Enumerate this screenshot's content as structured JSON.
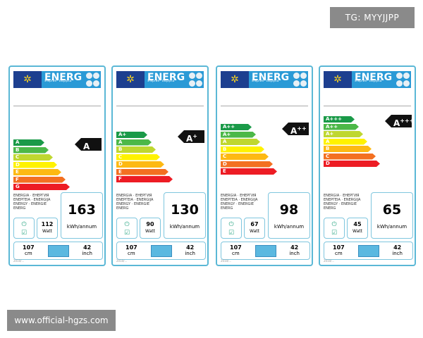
{
  "tag": "TG: MYYJJPP",
  "watermark": "www.official-hgzs.com",
  "header": {
    "energy_word": "ENERG",
    "sub": "энергия · ενεργεια",
    "flag_icon": "eu-flag-icon"
  },
  "multilang_text": "ENERGIA · ЕНЕРГИЯ ENEPΓEIA · ENERGIJA ENERGY · ENERGIE ENERG",
  "units": {
    "kwh": "kWh/annum",
    "watt": "Watt",
    "cm": "cm",
    "inch": "inch"
  },
  "colors": [
    "#1a9a48",
    "#4cb848",
    "#bfd730",
    "#fff200",
    "#fdb913",
    "#f37021",
    "#ed1c24"
  ],
  "labels": [
    {
      "classes": [
        "A",
        "B",
        "C",
        "D",
        "E",
        "F",
        "G"
      ],
      "rating": "A",
      "rating_sup": "",
      "kwh": "163",
      "watt": "112",
      "cm": "107",
      "inch": "42",
      "footer": "2010/..."
    },
    {
      "classes": [
        "A+",
        "A",
        "B",
        "C",
        "D",
        "E",
        "F"
      ],
      "rating": "A",
      "rating_sup": "+",
      "kwh": "130",
      "watt": "90",
      "cm": "107",
      "inch": "42",
      "footer": "2010/..."
    },
    {
      "classes": [
        "A++",
        "A+",
        "A",
        "B",
        "C",
        "D",
        "E"
      ],
      "rating": "A",
      "rating_sup": "++",
      "kwh": "98",
      "watt": "67",
      "cm": "107",
      "inch": "42",
      "footer": "2010/..."
    },
    {
      "classes": [
        "A+++",
        "A++",
        "A+",
        "A",
        "B",
        "C",
        "D"
      ],
      "rating": "A",
      "rating_sup": "+++",
      "kwh": "65",
      "watt": "45",
      "cm": "107",
      "inch": "42",
      "footer": "2010/..."
    }
  ]
}
